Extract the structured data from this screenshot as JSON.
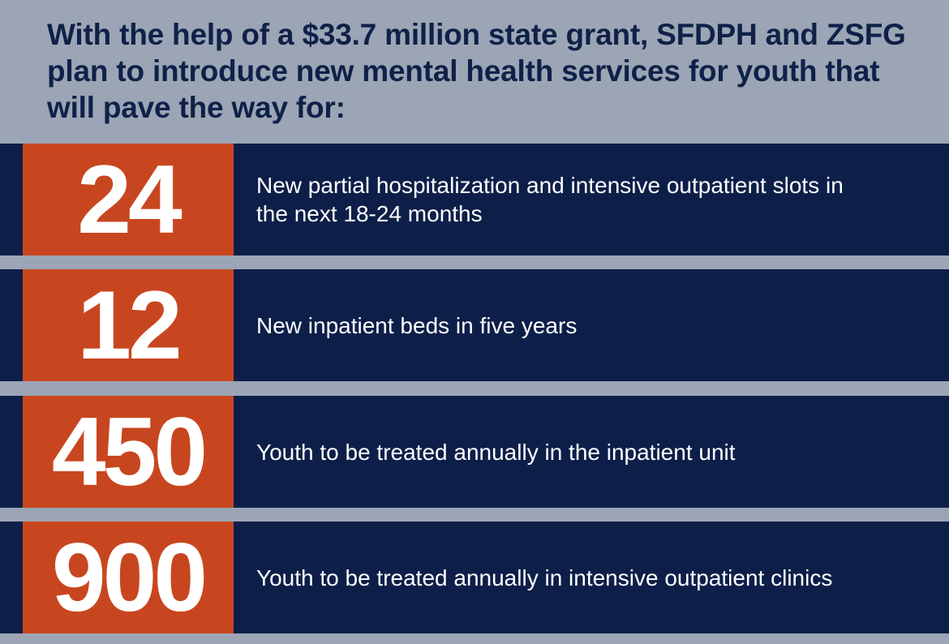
{
  "header": {
    "title": "With the help of a $33.7 million state grant, SFDPH and ZSFG plan to introduce new mental health services for youth that will pave the way for:"
  },
  "rows": [
    {
      "number": 24,
      "text": "New partial hospitalization and intensive outpatient slots in the next 18-24 months"
    },
    {
      "number": 12,
      "text": "New inpatient beds in five years"
    },
    {
      "number": 450,
      "text": "Youth to be treated annually in the inpatient unit"
    },
    {
      "number": 900,
      "text": "Youth to be treated annually in intensive outpatient clinics"
    }
  ]
}
